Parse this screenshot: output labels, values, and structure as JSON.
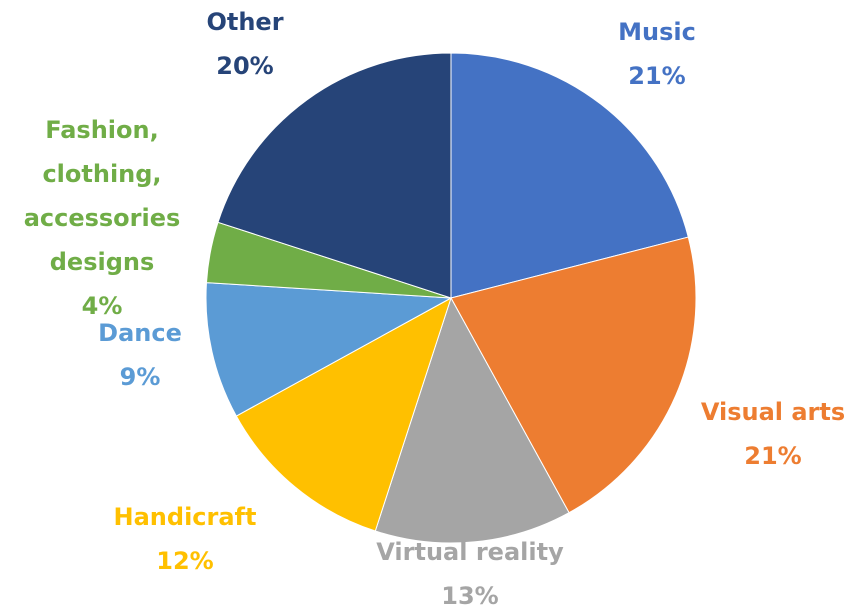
{
  "chart_data": {
    "type": "pie",
    "categories": [
      "Music",
      "Visual arts",
      "Virtual reality",
      "Handicraft",
      "Dance",
      "Fashion, clothing, accessories designs",
      "Other"
    ],
    "values": [
      21,
      21,
      13,
      12,
      9,
      4,
      20
    ],
    "value_labels": [
      "21%",
      "21%",
      "13%",
      "12%",
      "9%",
      "4%",
      "20%"
    ],
    "colors": [
      "#4472c4",
      "#ed7d31",
      "#a5a5a5",
      "#ffc000",
      "#5b9bd5",
      "#70ad47",
      "#264478"
    ]
  }
}
